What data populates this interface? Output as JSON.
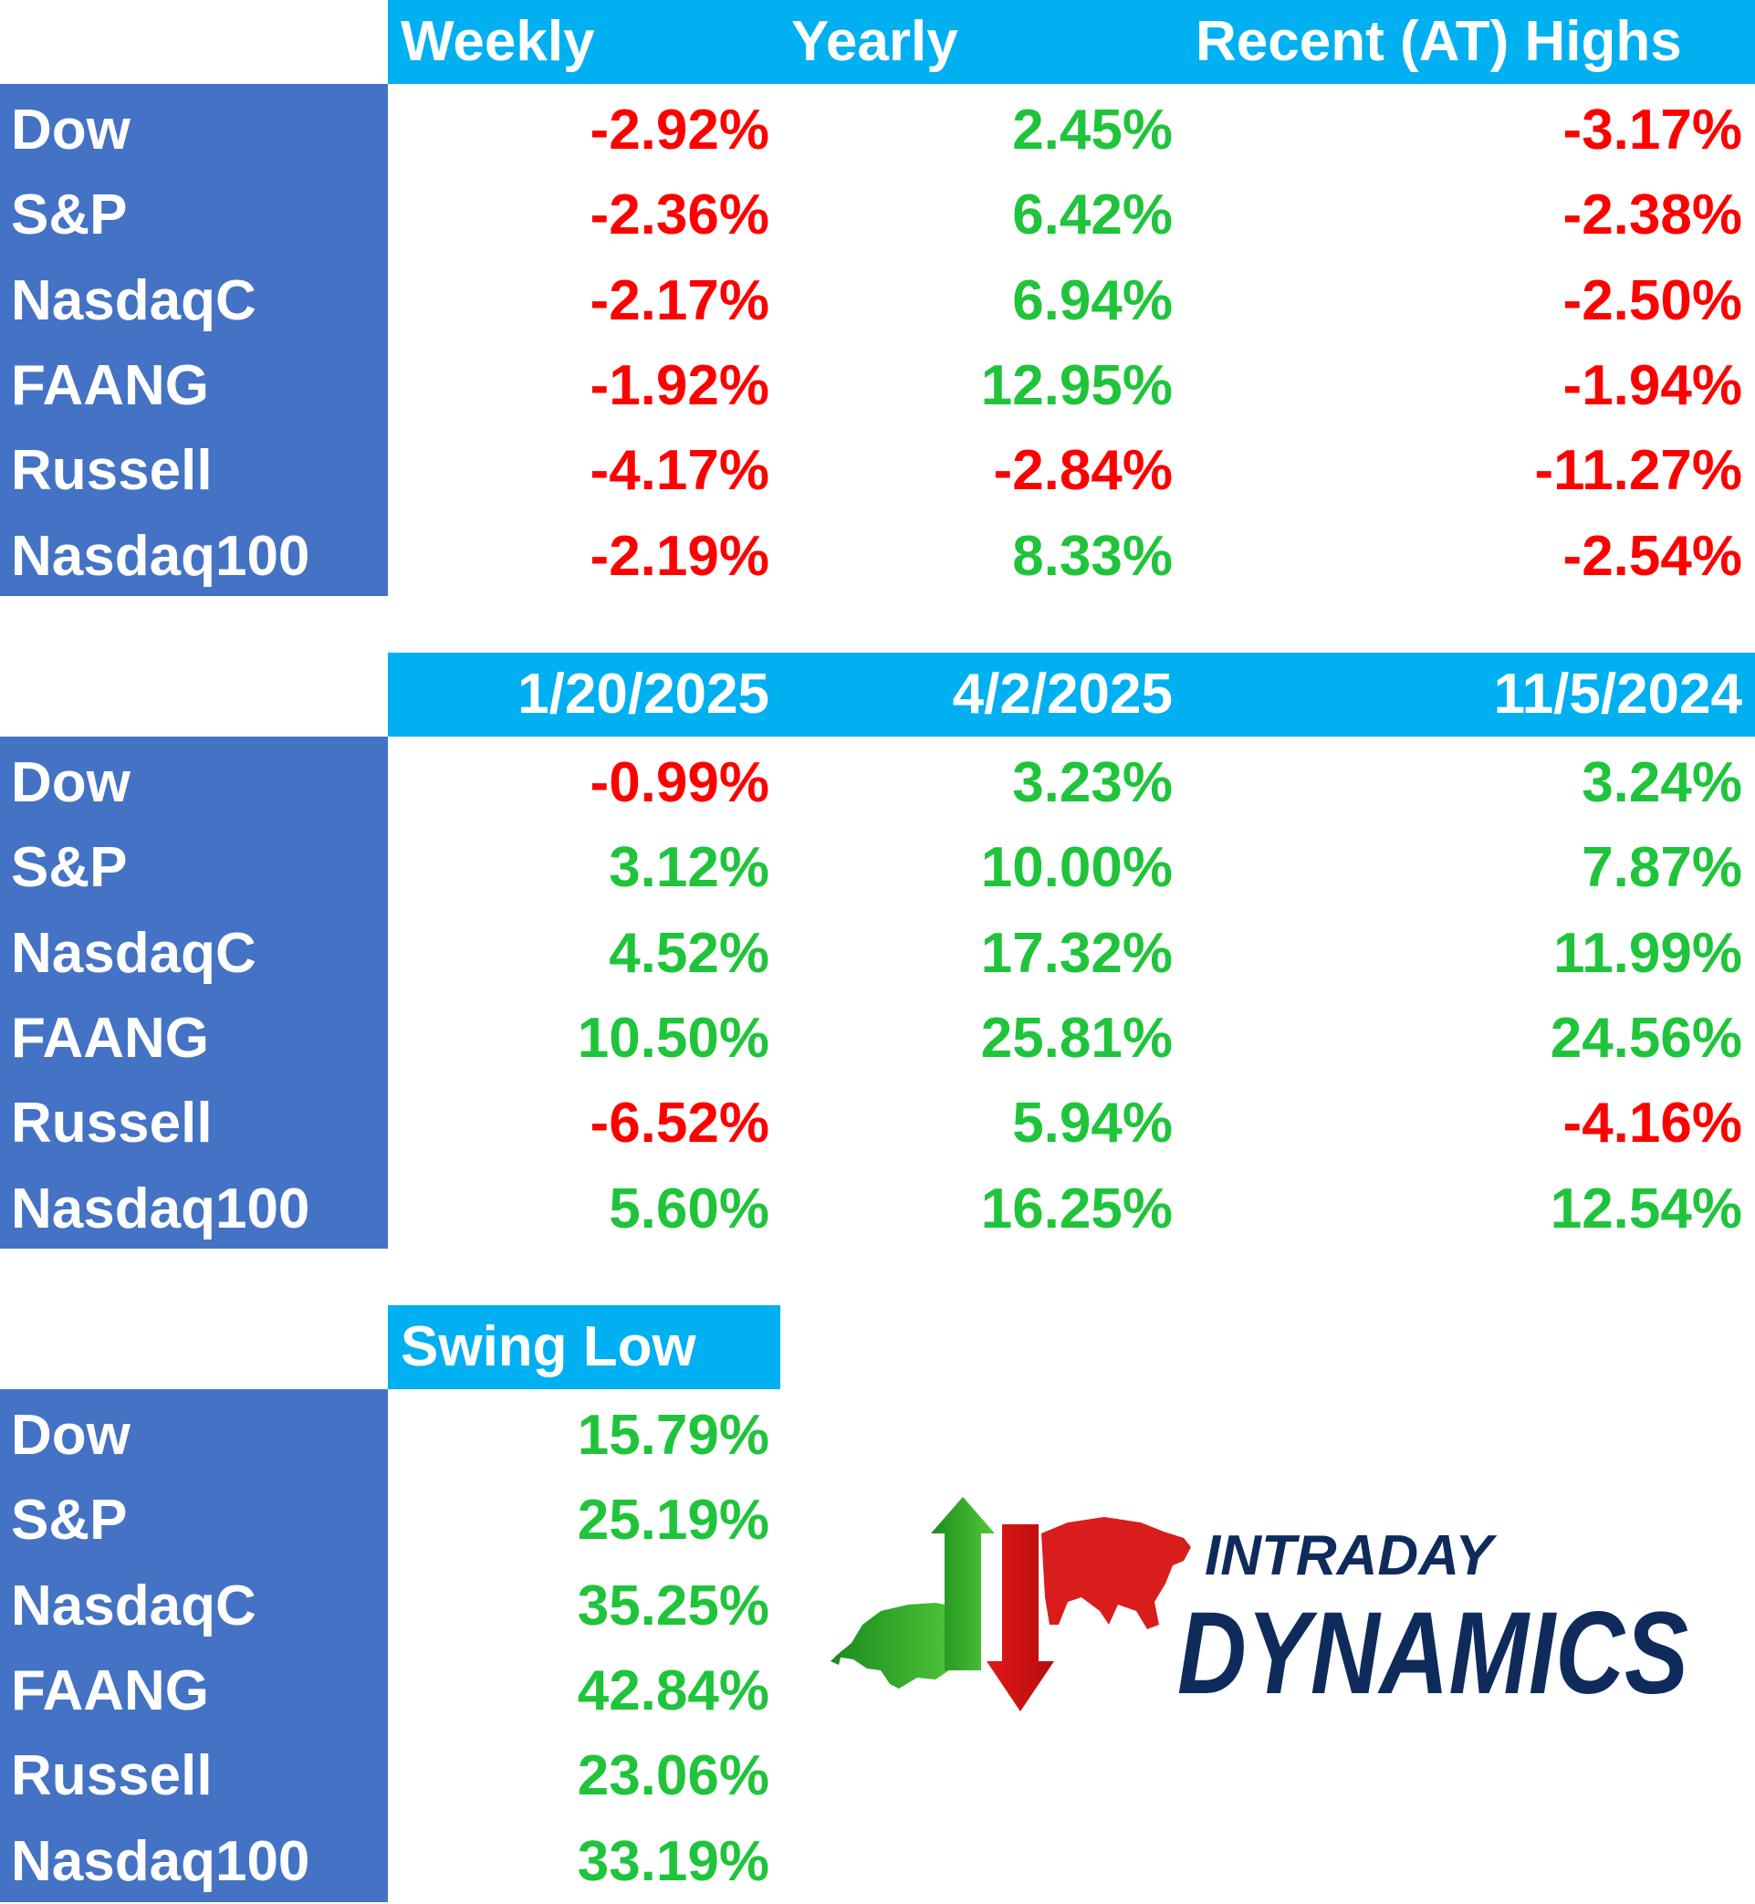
{
  "colors": {
    "header_bg": "#00b0f0",
    "label_bg": "#4472c4",
    "positive": "#1fc43b",
    "negative": "#ff0000"
  },
  "table1": {
    "headers": [
      "Weekly",
      "Yearly",
      "Recent (AT) Highs"
    ],
    "rows": [
      {
        "label": "Dow",
        "values": [
          "-2.92%",
          "2.45%",
          "-3.17%"
        ]
      },
      {
        "label": "S&P",
        "values": [
          "-2.36%",
          "6.42%",
          "-2.38%"
        ]
      },
      {
        "label": "NasdaqC",
        "values": [
          "-2.17%",
          "6.94%",
          "-2.50%"
        ]
      },
      {
        "label": "FAANG",
        "values": [
          "-1.92%",
          "12.95%",
          "-1.94%"
        ]
      },
      {
        "label": "Russell",
        "values": [
          "-4.17%",
          "-2.84%",
          "-11.27%"
        ]
      },
      {
        "label": "Nasdaq100",
        "values": [
          "-2.19%",
          "8.33%",
          "-2.54%"
        ]
      }
    ]
  },
  "table2": {
    "headers": [
      "1/20/2025",
      "4/2/2025",
      "11/5/2024"
    ],
    "rows": [
      {
        "label": "Dow",
        "values": [
          "-0.99%",
          "3.23%",
          "3.24%"
        ]
      },
      {
        "label": "S&P",
        "values": [
          "3.12%",
          "10.00%",
          "7.87%"
        ]
      },
      {
        "label": "NasdaqC",
        "values": [
          "4.52%",
          "17.32%",
          "11.99%"
        ]
      },
      {
        "label": "FAANG",
        "values": [
          "10.50%",
          "25.81%",
          "24.56%"
        ]
      },
      {
        "label": "Russell",
        "values": [
          "-6.52%",
          "5.94%",
          "-4.16%"
        ]
      },
      {
        "label": "Nasdaq100",
        "values": [
          "5.60%",
          "16.25%",
          "12.54%"
        ]
      }
    ]
  },
  "table3": {
    "headers": [
      "Swing Low"
    ],
    "rows": [
      {
        "label": "Dow",
        "values": [
          "15.79%"
        ]
      },
      {
        "label": "S&P",
        "values": [
          "25.19%"
        ]
      },
      {
        "label": "NasdaqC",
        "values": [
          "35.25%"
        ]
      },
      {
        "label": "FAANG",
        "values": [
          "42.84%"
        ]
      },
      {
        "label": "Russell",
        "values": [
          "23.06%"
        ]
      },
      {
        "label": "Nasdaq100",
        "values": [
          "33.19%"
        ]
      }
    ]
  },
  "logo": {
    "line1": "INTRADAY",
    "line2": "DYNAMICS"
  }
}
